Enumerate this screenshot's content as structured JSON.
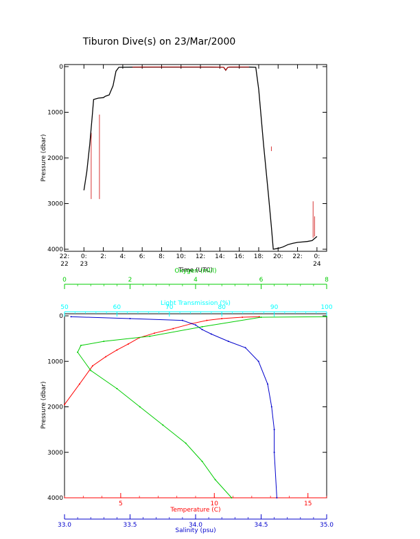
{
  "title": "Tiburon Dive(s) on 23/Mar/2000",
  "colors": {
    "axis": "#000000",
    "depth_track": "#000000",
    "depth_track_alt": "#cc0000",
    "temperature": "#ff0000",
    "salinity": "#0000cc",
    "oxygen": "#00cc00",
    "light_transmission": "#00ffff"
  },
  "chart_data": [
    {
      "type": "line",
      "title": "Tiburon Dive(s) on 23/Mar/2000",
      "xlabel": "Time (UTC)",
      "ylabel": "Pressure (dbar)",
      "xlim": [
        22,
        49
      ],
      "ylim": [
        4000,
        0
      ],
      "y_ticks": [
        "0",
        "1000",
        "2000",
        "3000",
        "4000"
      ],
      "x_ticks": [
        {
          "x": 22,
          "line1": "22:",
          "line2": "22"
        },
        {
          "x": 24,
          "line1": "0:",
          "line2": "23"
        },
        {
          "x": 26,
          "line1": "2:",
          "line2": ""
        },
        {
          "x": 28,
          "line1": "4:",
          "line2": ""
        },
        {
          "x": 30,
          "line1": "6:",
          "line2": ""
        },
        {
          "x": 32,
          "line1": "8:",
          "line2": ""
        },
        {
          "x": 34,
          "line1": "10:",
          "line2": ""
        },
        {
          "x": 36,
          "line1": "12:",
          "line2": ""
        },
        {
          "x": 38,
          "line1": "14:",
          "line2": ""
        },
        {
          "x": 40,
          "line1": "16:",
          "line2": ""
        },
        {
          "x": 42,
          "line1": "18:",
          "line2": ""
        },
        {
          "x": 44,
          "line1": "20:",
          "line2": ""
        },
        {
          "x": 46,
          "line1": "22:",
          "line2": ""
        },
        {
          "x": 48,
          "line1": "0:",
          "line2": "24"
        }
      ],
      "grid": false,
      "series": [
        {
          "x": [
            24.0,
            24.3,
            24.6,
            24.85,
            25.0,
            25.5,
            26.0,
            26.2,
            26.6,
            27.0,
            27.3,
            27.6,
            29,
            31,
            33,
            35,
            37,
            38.4,
            38.6,
            38.8,
            39,
            41,
            41.7,
            42.0,
            42.5,
            43.0,
            43.3,
            43.5,
            44.0,
            44.5,
            45.0,
            45.5,
            46.0,
            46.5,
            47.0,
            47.5,
            48.0
          ],
          "y": [
            2710,
            2300,
            1700,
            1100,
            720,
            690,
            680,
            650,
            620,
            420,
            100,
            15,
            12,
            10,
            10,
            10,
            10,
            15,
            80,
            20,
            10,
            10,
            15,
            500,
            1700,
            2800,
            3500,
            4000,
            3980,
            3950,
            3900,
            3870,
            3850,
            3840,
            3830,
            3810,
            3720
          ]
        }
      ],
      "annotations": [
        {
          "x": 24.75,
          "y0": 1450,
          "y1": 2900
        },
        {
          "x": 25.6,
          "y0": 1050,
          "y1": 2900
        },
        {
          "x": 47.6,
          "y0": 2950,
          "y1": 3750
        },
        {
          "x": 47.75,
          "y0": 3280,
          "y1": 3720
        },
        {
          "x": 43.3,
          "y0": 1750,
          "y1": 1850
        }
      ]
    },
    {
      "type": "scatter",
      "ylabel": "Pressure (dbar)",
      "ylim": [
        4000,
        0
      ],
      "y_ticks": [
        "0",
        "1000",
        "2000",
        "3000",
        "4000"
      ],
      "grid": false,
      "axes": [
        {
          "name": "Oxygen (ml/l)",
          "position": "top-outer",
          "lim": [
            0,
            8
          ],
          "ticks": [
            "0",
            "2",
            "4",
            "6",
            "8"
          ],
          "color": "#00cc00"
        },
        {
          "name": "Light Transmission (%)",
          "position": "top-inner",
          "lim": [
            50,
            100
          ],
          "ticks": [
            "50",
            "60",
            "70",
            "80",
            "90",
            "100"
          ],
          "color": "#00ffff"
        },
        {
          "name": "Temperature (C)",
          "position": "bottom-inner",
          "lim": [
            2,
            16
          ],
          "ticks": [
            "5",
            "10",
            "15"
          ],
          "color": "#ff0000"
        },
        {
          "name": "Salinity (psu)",
          "position": "bottom-outer",
          "lim": [
            33.0,
            35.0
          ],
          "ticks": [
            "33.0",
            "33.5",
            "34.0",
            "34.5",
            "35.0"
          ],
          "color": "#0000cc"
        }
      ],
      "series": [
        {
          "name": "Temperature (C)",
          "x": [
            2.0,
            2.8,
            3.5,
            4.2,
            4.8,
            5.4,
            6.0,
            6.8,
            7.8,
            8.8,
            9.6,
            10.4,
            11.5,
            12.4
          ],
          "y": [
            1950,
            1500,
            1100,
            900,
            750,
            620,
            480,
            380,
            280,
            170,
            100,
            60,
            30,
            20
          ]
        },
        {
          "name": "Salinity (psu)",
          "x": [
            33.05,
            33.5,
            33.9,
            34.0,
            34.05,
            34.12,
            34.25,
            34.38,
            34.48,
            34.55,
            34.58,
            34.6,
            34.6,
            34.62
          ],
          "y": [
            20,
            60,
            100,
            200,
            300,
            400,
            560,
            700,
            1000,
            1500,
            2000,
            2500,
            3000,
            4000
          ]
        },
        {
          "name": "Oxygen (ml/l)",
          "x": [
            8.0,
            6.0,
            4.2,
            2.6,
            1.2,
            0.5,
            0.4,
            0.8,
            1.6,
            2.3,
            3.0,
            3.7,
            4.2,
            4.6,
            5.1
          ],
          "y": [
            20,
            30,
            240,
            450,
            560,
            650,
            800,
            1200,
            1600,
            2000,
            2400,
            2800,
            3200,
            3600,
            4000
          ]
        }
      ]
    }
  ]
}
